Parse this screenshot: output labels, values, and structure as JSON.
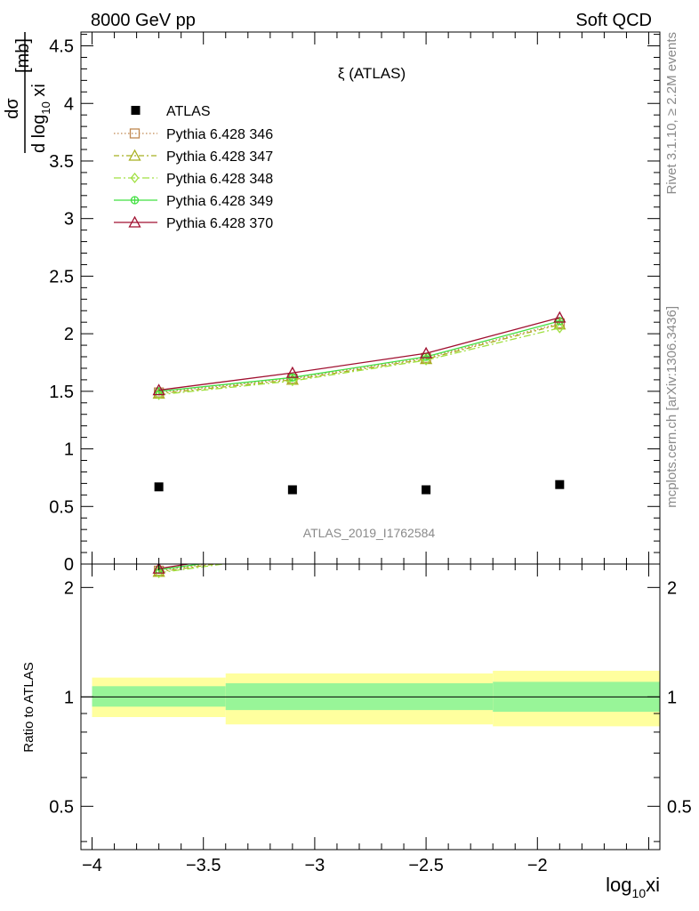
{
  "header": {
    "left": "8000 GeV pp",
    "right": "Soft QCD"
  },
  "side_labels": {
    "rivet": "Rivet 3.1.10, ≥ 2.2M events",
    "mcplots": "mcplots.cern.ch [arXiv:1306.3436]"
  },
  "chart_data": {
    "type": "scatter",
    "title": "ξ (ATLAS)",
    "watermark": "ATLAS_2019_I1762584",
    "ylabel_main": {
      "num": "dσ",
      "den_prefix": "d log",
      "den_sub": "10",
      "den_suffix": " xi",
      "unit": "[mb]"
    },
    "ylabel_ratio": "Ratio to ATLAS",
    "xlabel": {
      "prefix": "log",
      "sub": "10",
      "suffix": "xi"
    },
    "xlim": [
      -4.05,
      -1.45
    ],
    "ylim_main": [
      0,
      4.62
    ],
    "ylim_ratio": [
      0.38,
      2.32
    ],
    "xticks": [
      {
        "v": -4,
        "label": "−4"
      },
      {
        "v": -3.5,
        "label": "−3.5"
      },
      {
        "v": -3,
        "label": "−3"
      },
      {
        "v": -2.5,
        "label": "−2.5"
      },
      {
        "v": -2,
        "label": "−2"
      }
    ],
    "yticks_main": [
      {
        "v": 0,
        "label": "0"
      },
      {
        "v": 0.5,
        "label": "0.5"
      },
      {
        "v": 1,
        "label": "1"
      },
      {
        "v": 1.5,
        "label": "1.5"
      },
      {
        "v": 2,
        "label": "2"
      },
      {
        "v": 2.5,
        "label": "2.5"
      },
      {
        "v": 3,
        "label": "3"
      },
      {
        "v": 3.5,
        "label": "3.5"
      },
      {
        "v": 4,
        "label": "4"
      },
      {
        "v": 4.5,
        "label": "4.5"
      }
    ],
    "yticks_ratio": [
      {
        "v": 0.5,
        "label": "0.5"
      },
      {
        "v": 1,
        "label": "1"
      },
      {
        "v": 2,
        "label": "2"
      }
    ],
    "x": [
      -3.7,
      -3.1,
      -2.5,
      -1.9
    ],
    "bins": [
      [
        -4.0,
        -3.4
      ],
      [
        -3.4,
        -2.2
      ],
      [
        -2.2,
        -1.45
      ]
    ],
    "ratio_bands": {
      "inner": [
        [
          0.94,
          1.07
        ],
        [
          0.92,
          1.09
        ],
        [
          0.91,
          1.1
        ]
      ],
      "outer": [
        [
          0.88,
          1.13
        ],
        [
          0.84,
          1.16
        ],
        [
          0.83,
          1.18
        ]
      ],
      "inner_color": "#98f598",
      "outer_color": "#ffff9e"
    },
    "data": {
      "name": "ATLAS",
      "values": [
        0.67,
        0.645,
        0.645,
        0.69
      ],
      "color": "#000000"
    },
    "series": [
      {
        "name": "Pythia 6.428 346",
        "values": [
          1.49,
          1.61,
          1.79,
          2.09
        ],
        "color": "#c08850",
        "dash": "1.5,2.5",
        "marker": "square"
      },
      {
        "name": "Pythia 6.428 347",
        "values": [
          1.48,
          1.6,
          1.78,
          2.08
        ],
        "color": "#a8b020",
        "dash": "6,3,2,3",
        "marker": "triangle"
      },
      {
        "name": "Pythia 6.428 348",
        "values": [
          1.47,
          1.59,
          1.77,
          2.05
        ],
        "color": "#a0e040",
        "dash": "8,3,2,3",
        "marker": "diamond"
      },
      {
        "name": "Pythia 6.428 349",
        "values": [
          1.5,
          1.62,
          1.8,
          2.11
        ],
        "color": "#40e040",
        "dash": "",
        "marker": "circleplus"
      },
      {
        "name": "Pythia 6.428 370",
        "values": [
          1.51,
          1.66,
          1.83,
          2.14
        ],
        "color": "#a01030",
        "dash": "",
        "marker": "triangle"
      }
    ]
  }
}
